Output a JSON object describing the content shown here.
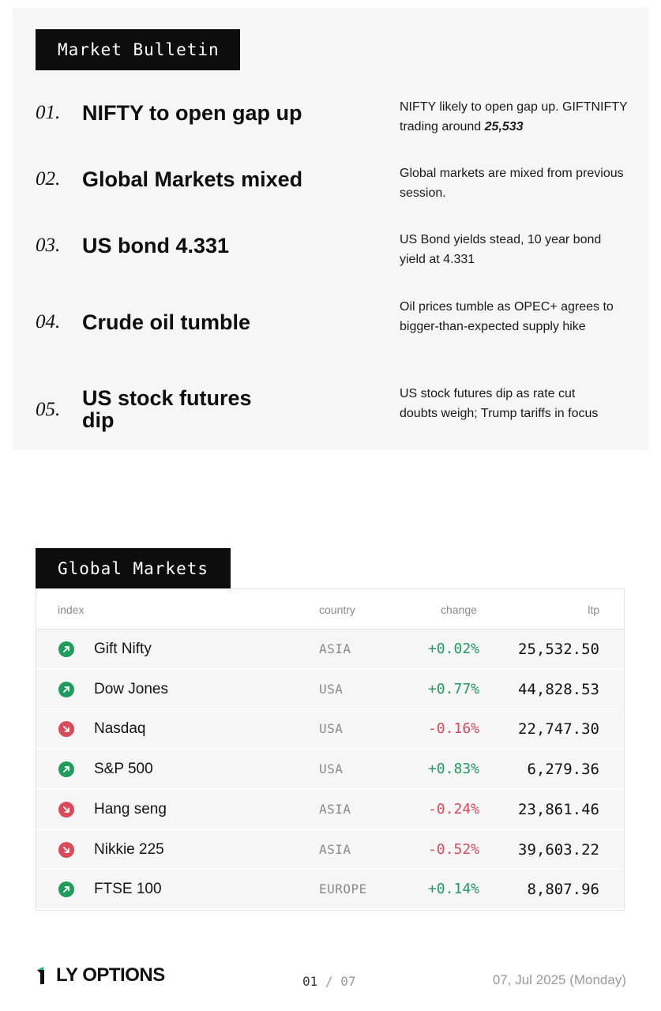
{
  "bulletin": {
    "title": "Market Bulletin",
    "items": [
      {
        "number": "01.",
        "headline": "NIFTY to open gap up",
        "description": "NIFTY likely to open gap up. GIFTNIFTY trading around ",
        "description_bold": "25,533"
      },
      {
        "number": "02.",
        "headline": "Global Markets mixed",
        "description": "Global markets are mixed from previous session."
      },
      {
        "number": "03.",
        "headline": "US bond 4.331",
        "description": "US Bond yields stead, 10 year bond yield at 4.331"
      },
      {
        "number": "04.",
        "headline": "Crude oil tumble",
        "description": "Oil prices tumble as OPEC+ agrees to bigger-than-expected supply hike"
      },
      {
        "number": "05.",
        "headline": "US stock futures dip",
        "description": "US stock futures dip as rate cut doubts weigh; Trump tariffs in focus"
      }
    ]
  },
  "global_markets": {
    "title": "Global Markets",
    "columns": {
      "index": "index",
      "country": "country",
      "change": "change",
      "ltp": "ltp"
    },
    "rows": [
      {
        "index": "Gift Nifty",
        "country": "ASIA",
        "change": "+0.02%",
        "ltp": "25,532.50",
        "direction": "up"
      },
      {
        "index": "Dow Jones",
        "country": "USA",
        "change": "+0.77%",
        "ltp": "44,828.53",
        "direction": "up"
      },
      {
        "index": "Nasdaq",
        "country": "USA",
        "change": "-0.16%",
        "ltp": "22,747.30",
        "direction": "down"
      },
      {
        "index": "S&P 500",
        "country": "USA",
        "change": "+0.83%",
        "ltp": "6,279.36",
        "direction": "up"
      },
      {
        "index": "Hang seng",
        "country": "ASIA",
        "change": "-0.24%",
        "ltp": "23,861.46",
        "direction": "down"
      },
      {
        "index": "Nikkie 225",
        "country": "ASIA",
        "change": "-0.52%",
        "ltp": "39,603.22",
        "direction": "down"
      },
      {
        "index": "FTSE 100",
        "country": "EUROPE",
        "change": "+0.14%",
        "ltp": "8,807.96",
        "direction": "up"
      }
    ]
  },
  "footer": {
    "logo_text": "LY OPTIONS",
    "page_current": "01",
    "page_separator": "/",
    "page_total": "07",
    "date": "07, Jul 2025 (Monday)"
  },
  "colors": {
    "positive": "#1f9c5e",
    "negative": "#d94a5b",
    "badge_bg": "#0d0d0d"
  }
}
